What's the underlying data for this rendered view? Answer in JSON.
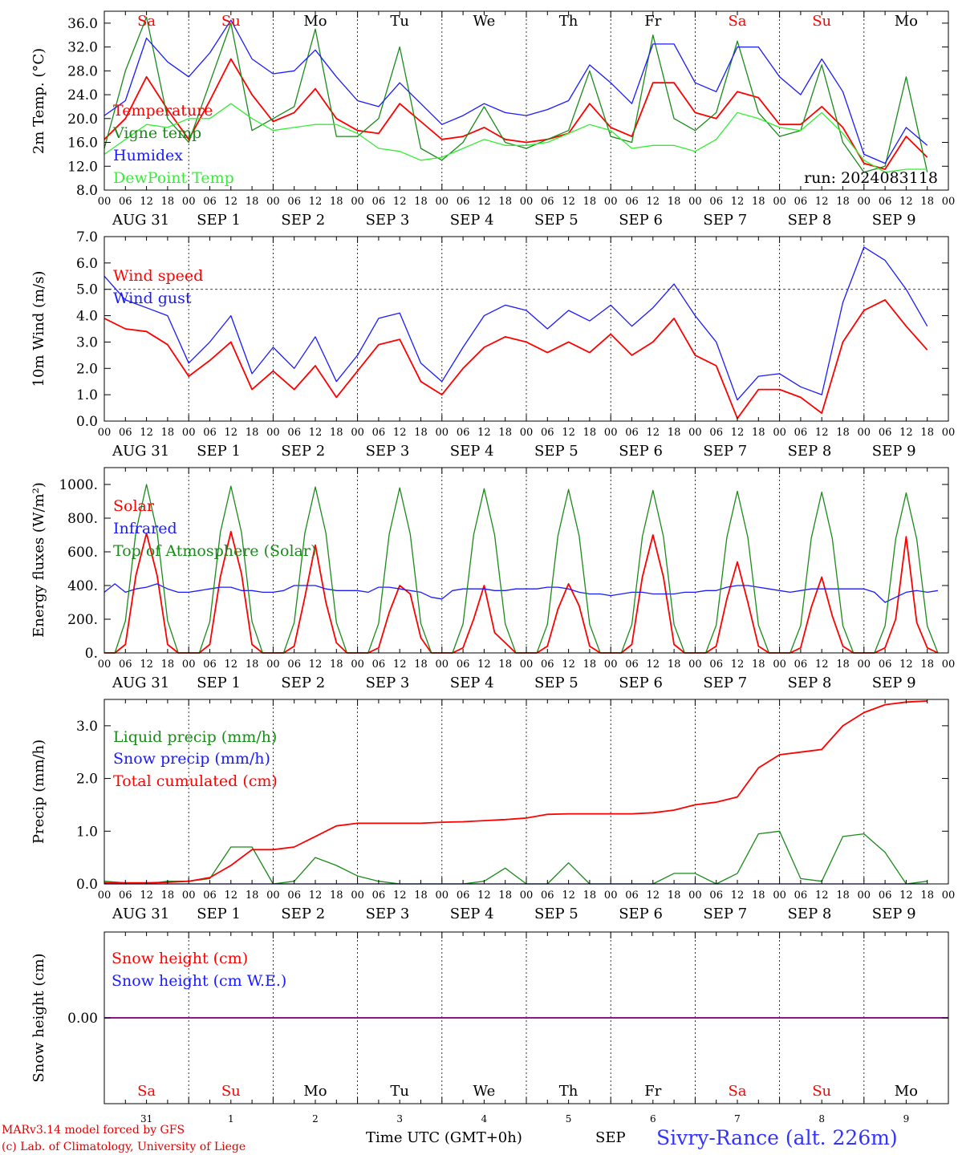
{
  "run_label": "run: 2024083118",
  "station_label": "Sivry-Rance (alt. 226m)",
  "credits": [
    "MARv3.14 model forced by GFS",
    "(c) Lab. of Climatology, University of Liege"
  ],
  "time_axis_label": "Time UTC (GMT+0h)",
  "month_label": "SEP",
  "colors": {
    "red": "#ff0000",
    "green": "#1a8a1a",
    "blue": "#1a1aff",
    "lightgreen": "#33ee33",
    "purple": "#7f007f"
  },
  "days": [
    {
      "weekday": "Sa",
      "weekend": true,
      "date": "AUG 31",
      "num": "31"
    },
    {
      "weekday": "Su",
      "weekend": true,
      "date": "SEP  1",
      "num": "1"
    },
    {
      "weekday": "Mo",
      "weekend": false,
      "date": "SEP  2",
      "num": "2"
    },
    {
      "weekday": "Tu",
      "weekend": false,
      "date": "SEP  3",
      "num": "3"
    },
    {
      "weekday": "We",
      "weekend": false,
      "date": "SEP  4",
      "num": "4"
    },
    {
      "weekday": "Th",
      "weekend": false,
      "date": "SEP  5",
      "num": "5"
    },
    {
      "weekday": "Fr",
      "weekend": false,
      "date": "SEP  6",
      "num": "6"
    },
    {
      "weekday": "Sa",
      "weekend": true,
      "date": "SEP  7",
      "num": "7"
    },
    {
      "weekday": "Su",
      "weekend": true,
      "date": "SEP  8",
      "num": "8"
    },
    {
      "weekday": "Mo",
      "weekend": false,
      "date": "SEP  9",
      "num": "9"
    }
  ],
  "hour_ticks": [
    "00",
    "06",
    "12",
    "18"
  ],
  "chart_data": [
    {
      "type": "line",
      "ylabel": "2m Temp. (°C)",
      "ylim": [
        8,
        38
      ],
      "yticks": [
        "36.0",
        "32.0",
        "28.0",
        "24.0",
        "20.0",
        "16.0",
        "12.0",
        "8.0"
      ],
      "ytick_values": [
        36,
        32,
        28,
        24,
        20,
        16,
        12,
        8
      ],
      "ref_line": null,
      "x_hours": [
        0,
        6,
        12,
        18,
        24,
        30,
        36,
        42,
        48,
        54,
        60,
        66,
        72,
        78,
        84,
        90,
        96,
        102,
        108,
        114,
        120,
        126,
        132,
        138,
        144,
        150,
        156,
        162,
        168,
        174,
        180,
        186,
        192,
        198,
        204,
        210,
        216,
        222,
        228,
        234
      ],
      "series": [
        {
          "name": "Temperature",
          "color": "red",
          "values": [
            16.5,
            20,
            27,
            21.5,
            16.5,
            23,
            30,
            24,
            19.5,
            21,
            25,
            20,
            18,
            17.5,
            22.5,
            19.5,
            16.5,
            17,
            18.5,
            16.5,
            16,
            16.5,
            17.5,
            22.5,
            18.5,
            17,
            26,
            26,
            21,
            20,
            24.5,
            23.5,
            19,
            19,
            22,
            18.5,
            12.5,
            11.5,
            17,
            13.5
          ]
        },
        {
          "name": "Vigne temp",
          "color": "green",
          "values": [
            15,
            28,
            37,
            20,
            16,
            26,
            36,
            18,
            20,
            22,
            35,
            17,
            17,
            20,
            32,
            15,
            13,
            16,
            22,
            16,
            15,
            16.5,
            18,
            28,
            17,
            16,
            34,
            20,
            18,
            21,
            33,
            21,
            17,
            18,
            29,
            16,
            11,
            12,
            27,
            11
          ]
        },
        {
          "name": "Humidex",
          "color": "blue",
          "values": [
            20.5,
            23,
            33.5,
            29.5,
            27,
            31,
            36.5,
            30,
            27.5,
            28,
            31.5,
            27,
            23,
            22,
            26,
            22.5,
            19,
            20.5,
            22.5,
            21,
            20.5,
            21.5,
            23,
            29,
            26,
            22.5,
            32.5,
            32.5,
            26,
            24.5,
            32,
            32,
            27,
            24,
            30,
            24.5,
            14,
            12.5,
            18.5,
            15.5
          ]
        },
        {
          "name": "DewPoint Temp",
          "color": "lightgreen",
          "values": [
            14,
            16.5,
            19,
            18.5,
            20,
            20,
            22.5,
            20,
            18,
            18.5,
            19,
            19,
            17.5,
            15,
            14.5,
            13,
            13.5,
            15,
            16.5,
            15.5,
            15.5,
            16,
            17.5,
            19,
            18,
            15,
            15.5,
            15.5,
            14.5,
            16.5,
            21,
            20,
            18.5,
            18,
            21,
            17.5,
            13,
            11,
            11.5,
            11.5
          ]
        }
      ]
    },
    {
      "type": "line",
      "ylabel": "10m Wind (m/s)",
      "ylim": [
        0,
        7
      ],
      "yticks": [
        "7.0",
        "6.0",
        "5.0",
        "4.0",
        "3.0",
        "2.0",
        "1.0",
        "0.0"
      ],
      "ytick_values": [
        7,
        6,
        5,
        4,
        3,
        2,
        1,
        0
      ],
      "ref_line": 5,
      "x_hours": [
        0,
        6,
        12,
        18,
        24,
        30,
        36,
        42,
        48,
        54,
        60,
        66,
        72,
        78,
        84,
        90,
        96,
        102,
        108,
        114,
        120,
        126,
        132,
        138,
        144,
        150,
        156,
        162,
        168,
        174,
        180,
        186,
        192,
        198,
        204,
        210,
        216,
        222,
        228,
        234
      ],
      "series": [
        {
          "name": "Wind speed",
          "color": "red",
          "values": [
            3.9,
            3.5,
            3.4,
            2.9,
            1.7,
            2.3,
            3,
            1.2,
            1.9,
            1.2,
            2.1,
            0.9,
            1.9,
            2.9,
            3.1,
            1.5,
            1,
            2,
            2.8,
            3.2,
            3,
            2.6,
            3,
            2.6,
            3.3,
            2.5,
            3,
            3.9,
            2.5,
            2.1,
            0.1,
            1.2,
            1.2,
            0.9,
            0.3,
            3,
            4.2,
            4.6,
            3.6,
            2.7
          ]
        },
        {
          "name": "Wind gust",
          "color": "blue",
          "values": [
            5.5,
            4.6,
            4.3,
            4,
            2.2,
            3,
            4,
            1.8,
            2.8,
            2,
            3.2,
            1.5,
            2.5,
            3.9,
            4.1,
            2.2,
            1.5,
            2.8,
            4,
            4.4,
            4.2,
            3.5,
            4.2,
            3.8,
            4.4,
            3.6,
            4.3,
            5.2,
            4,
            3,
            0.8,
            1.7,
            1.8,
            1.3,
            1,
            4.5,
            6.6,
            6.1,
            5,
            3.6
          ]
        }
      ]
    },
    {
      "type": "line",
      "ylabel": "Energy fluxes (W/m²)",
      "ylim": [
        0,
        1100
      ],
      "yticks": [
        "1000.",
        "800.",
        "600.",
        "400.",
        "200.",
        "0."
      ],
      "ytick_values": [
        1000,
        800,
        600,
        400,
        200,
        0
      ],
      "ref_line": null,
      "x_hours": [
        0,
        3,
        6,
        9,
        12,
        15,
        18,
        21,
        24,
        27,
        30,
        33,
        36,
        39,
        42,
        45,
        48,
        51,
        54,
        57,
        60,
        63,
        66,
        69,
        72,
        75,
        78,
        81,
        84,
        87,
        90,
        93,
        96,
        99,
        102,
        105,
        108,
        111,
        114,
        117,
        120,
        123,
        126,
        129,
        132,
        135,
        138,
        141,
        144,
        147,
        150,
        153,
        156,
        159,
        162,
        165,
        168,
        171,
        174,
        177,
        180,
        183,
        186,
        189,
        192,
        195,
        198,
        201,
        204,
        207,
        210,
        213,
        216,
        219,
        222,
        225,
        228,
        231,
        234,
        237
      ],
      "series": [
        {
          "name": "Solar",
          "color": "red",
          "values": [
            0,
            0,
            50,
            460,
            710,
            460,
            50,
            0,
            0,
            0,
            50,
            450,
            720,
            470,
            50,
            0,
            0,
            0,
            40,
            330,
            640,
            300,
            60,
            0,
            0,
            0,
            30,
            240,
            400,
            350,
            90,
            0,
            0,
            0,
            30,
            200,
            400,
            120,
            60,
            0,
            0,
            0,
            40,
            260,
            410,
            280,
            40,
            0,
            0,
            0,
            50,
            450,
            700,
            450,
            50,
            0,
            0,
            0,
            40,
            320,
            540,
            300,
            40,
            0,
            0,
            0,
            30,
            270,
            450,
            220,
            40,
            0,
            0,
            0,
            30,
            200,
            690,
            180,
            30,
            0
          ]
        },
        {
          "name": "Infrared",
          "color": "blue",
          "values": [
            360,
            410,
            360,
            380,
            390,
            410,
            380,
            360,
            360,
            370,
            380,
            390,
            390,
            370,
            370,
            360,
            360,
            370,
            400,
            400,
            400,
            380,
            370,
            370,
            370,
            360,
            390,
            390,
            380,
            370,
            360,
            330,
            320,
            370,
            380,
            380,
            380,
            370,
            370,
            380,
            380,
            380,
            390,
            390,
            380,
            360,
            350,
            350,
            340,
            350,
            360,
            360,
            350,
            350,
            350,
            360,
            360,
            370,
            370,
            390,
            400,
            400,
            390,
            380,
            370,
            360,
            370,
            380,
            380,
            380,
            380,
            380,
            380,
            360,
            300,
            330,
            360,
            370,
            360,
            370
          ]
        },
        {
          "name": "Top of Atmosphere (Solar)",
          "color": "green",
          "values": [
            0,
            0,
            190,
            720,
            1000,
            720,
            190,
            0,
            0,
            0,
            185,
            715,
            990,
            715,
            185,
            0,
            0,
            0,
            180,
            710,
            985,
            710,
            180,
            0,
            0,
            0,
            175,
            705,
            980,
            705,
            175,
            0,
            0,
            0,
            172,
            700,
            975,
            700,
            172,
            0,
            0,
            0,
            170,
            695,
            970,
            695,
            170,
            0,
            0,
            0,
            168,
            690,
            965,
            690,
            168,
            0,
            0,
            0,
            165,
            685,
            960,
            685,
            165,
            0,
            0,
            0,
            162,
            680,
            955,
            680,
            162,
            0,
            0,
            0,
            160,
            675,
            950,
            675,
            160,
            0
          ]
        }
      ]
    },
    {
      "type": "line",
      "ylabel": "Precip (mm/h)",
      "ylim": [
        0,
        3.5
      ],
      "yticks": [
        "3.0",
        "2.0",
        "1.0",
        "0.0"
      ],
      "ytick_values": [
        3,
        2,
        1,
        0
      ],
      "ref_line": null,
      "x_hours": [
        0,
        6,
        12,
        18,
        24,
        30,
        36,
        42,
        48,
        54,
        60,
        66,
        72,
        78,
        84,
        90,
        96,
        102,
        108,
        114,
        120,
        126,
        132,
        138,
        144,
        150,
        156,
        162,
        168,
        174,
        180,
        186,
        192,
        198,
        204,
        210,
        216,
        222,
        228,
        234
      ],
      "series": [
        {
          "name": "Liquid precip (mm/h)",
          "color": "green",
          "values": [
            0.05,
            0.02,
            0,
            0.05,
            0.05,
            0.1,
            0.7,
            0.7,
            0,
            0.05,
            0.5,
            0.35,
            0.15,
            0.05,
            0,
            0,
            0,
            0,
            0.05,
            0.3,
            0,
            0,
            0.4,
            0,
            0,
            0,
            0,
            0.2,
            0.2,
            0,
            0.2,
            0.95,
            1.0,
            0.1,
            0.05,
            0.9,
            0.95,
            0.6,
            0,
            0.05
          ]
        },
        {
          "name": "Snow precip (mm/h)",
          "color": "blue",
          "values": [
            0,
            0,
            0,
            0,
            0,
            0,
            0,
            0,
            0,
            0,
            0,
            0,
            0,
            0,
            0,
            0,
            0,
            0,
            0,
            0,
            0,
            0,
            0,
            0,
            0,
            0,
            0,
            0,
            0,
            0,
            0,
            0,
            0,
            0,
            0,
            0,
            0,
            0,
            0,
            0
          ]
        },
        {
          "name": "Total cumulated (cm)",
          "color": "red",
          "values": [
            0.02,
            0.02,
            0.02,
            0.03,
            0.05,
            0.12,
            0.35,
            0.65,
            0.65,
            0.7,
            0.9,
            1.1,
            1.15,
            1.15,
            1.15,
            1.15,
            1.17,
            1.18,
            1.2,
            1.22,
            1.25,
            1.32,
            1.33,
            1.33,
            1.33,
            1.33,
            1.35,
            1.4,
            1.5,
            1.55,
            1.65,
            2.2,
            2.45,
            2.5,
            2.55,
            3.0,
            3.25,
            3.4,
            3.45,
            3.47
          ]
        }
      ]
    },
    {
      "type": "line",
      "ylabel": "Snow height (cm)",
      "ylim": [
        -1,
        1
      ],
      "yticks": [
        "0.00"
      ],
      "ytick_values": [
        0
      ],
      "ref_line": null,
      "x_hours": [
        0,
        240
      ],
      "series": [
        {
          "name": "Snow height (cm)",
          "color": "red",
          "values": [
            0,
            0
          ]
        },
        {
          "name": "Snow height (cm W.E.)",
          "color": "blue",
          "values": [
            0,
            0
          ]
        }
      ]
    }
  ]
}
